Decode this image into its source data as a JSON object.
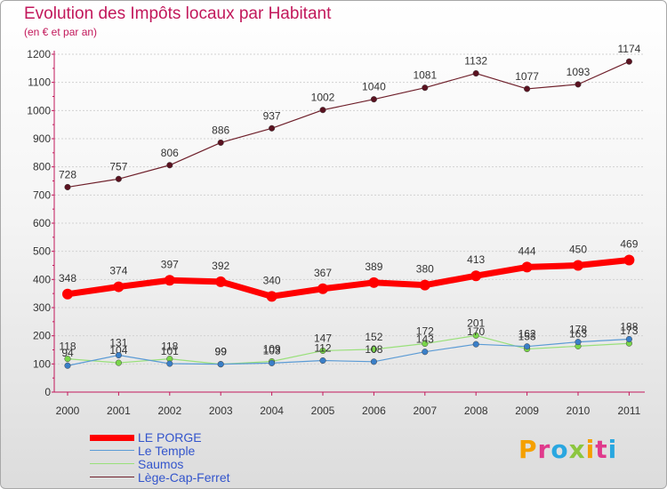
{
  "chart_data": {
    "type": "line",
    "title": "Evolution des Impôts locaux par Habitant",
    "subtitle": "(en € et par an)",
    "x": [
      2000,
      2001,
      2002,
      2003,
      2004,
      2005,
      2006,
      2007,
      2008,
      2009,
      2010,
      2011
    ],
    "xlabel": "",
    "ylabel": "",
    "ylim": [
      0,
      1200
    ],
    "yticks": [
      0,
      100,
      200,
      300,
      400,
      500,
      600,
      700,
      800,
      900,
      1000,
      1100,
      1200
    ],
    "grid": "horizontal",
    "legend_position": "bottom-left",
    "series": [
      {
        "name": "Lège-Cap-Ferret",
        "color": "#6e1f2a",
        "marker": "#5a1220",
        "width": 1.2,
        "values": [
          728,
          757,
          806,
          886,
          937,
          1002,
          1040,
          1081,
          1132,
          1077,
          1093,
          1174
        ],
        "labels": [
          "728",
          "757",
          "806",
          "886",
          "937",
          "1002",
          "1040",
          "1081",
          "1132",
          "1077",
          "1093",
          "1174"
        ]
      },
      {
        "name": "LE PORGE",
        "color": "#ff0000",
        "marker": "#ff0000",
        "width": 7,
        "values": [
          348,
          374,
          397,
          392,
          340,
          367,
          389,
          380,
          413,
          444,
          450,
          469
        ],
        "labels": [
          "348",
          "374",
          "397",
          "392",
          "340",
          "367",
          "389",
          "380",
          "413",
          "444",
          "450",
          "469"
        ]
      },
      {
        "name": "Saumos",
        "color": "#99e07a",
        "marker": "#7ad64a",
        "width": 1.2,
        "values": [
          118,
          104,
          118,
          99,
          109,
          147,
          152,
          172,
          201,
          153,
          163,
          173
        ],
        "labels": [
          "118",
          "104",
          "118",
          "99",
          "109",
          "147",
          "152",
          "172",
          "201",
          "153",
          "163",
          "173"
        ]
      },
      {
        "name": "Le Temple",
        "color": "#5b9bd5",
        "marker": "#3a7fc8",
        "width": 1.2,
        "values": [
          94,
          131,
          101,
          99,
          103,
          112,
          108,
          143,
          170,
          162,
          178,
          188
        ],
        "labels": [
          "94",
          "131",
          "101",
          "99",
          "103",
          "112",
          "108",
          "143",
          "170",
          "162",
          "178",
          "188"
        ]
      }
    ],
    "legend": [
      {
        "name": "LE PORGE",
        "color": "#ff0000",
        "width": 7
      },
      {
        "name": "Le Temple",
        "color": "#5b9bd5",
        "width": 1.5
      },
      {
        "name": "Saumos",
        "color": "#99e07a",
        "width": 1.5
      },
      {
        "name": "Lège-Cap-Ferret",
        "color": "#6e1f2a",
        "width": 1.5
      }
    ]
  },
  "logo": {
    "text": "Proxiti",
    "letters": [
      {
        "ch": "P",
        "color": "#f5a000"
      },
      {
        "ch": "r",
        "color": "#e03a8c"
      },
      {
        "ch": "o",
        "color": "#2aa7e0"
      },
      {
        "ch": "x",
        "color": "#8cc63f"
      },
      {
        "ch": "i",
        "color": "#f5a000"
      },
      {
        "ch": "t",
        "color": "#e03a8c"
      },
      {
        "ch": "i",
        "color": "#2aa7e0"
      }
    ]
  }
}
